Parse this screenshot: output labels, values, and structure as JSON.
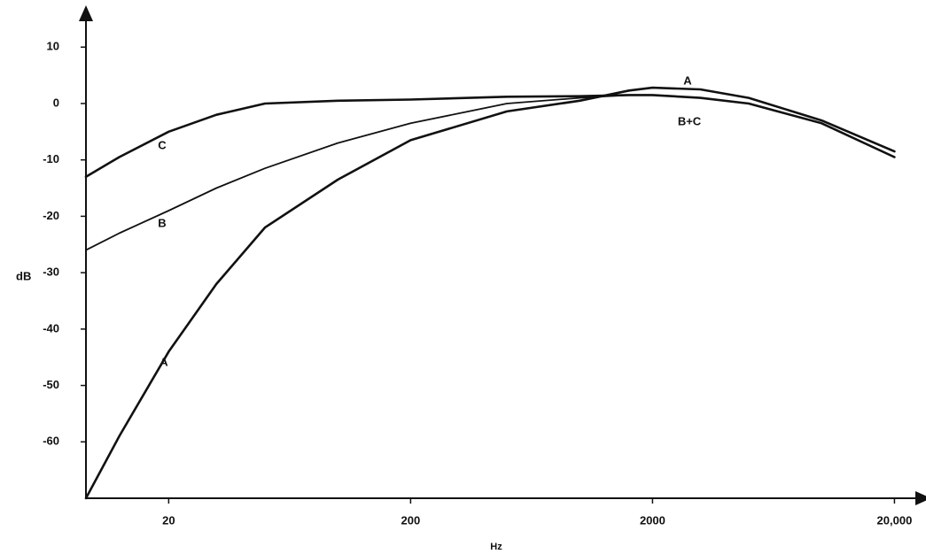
{
  "chart_data": {
    "type": "line",
    "x_label": "Hz",
    "y_label": "dB",
    "log_x": true,
    "x": [
      9.1,
      12.5,
      20,
      31.5,
      50,
      100,
      200,
      500,
      1000,
      1600,
      2000,
      3150,
      5000,
      10000,
      20000
    ],
    "series": [
      {
        "name": "A",
        "color": "#111111",
        "values": [
          -70,
          -59,
          -44,
          -32,
          -22,
          -13.5,
          -6.5,
          -1.4,
          0.5,
          2.3,
          2.8,
          2.5,
          1,
          -3,
          -8.5
        ]
      },
      {
        "name": "B",
        "color": "#111111",
        "values": [
          -26,
          -23,
          -19,
          -15,
          -11.5,
          -7,
          -3.5,
          0,
          1,
          1.5,
          1.5,
          1,
          0,
          -3.5,
          -9.5
        ]
      },
      {
        "name": "C",
        "color": "#111111",
        "values": [
          -13,
          -9.5,
          -5,
          -2,
          0,
          0.5,
          0.7,
          1.2,
          1.3,
          1.5,
          1.5,
          1,
          0,
          -3.5,
          -9.5
        ]
      }
    ],
    "annotations": [
      "A",
      "B+C"
    ],
    "xlim": [
      9.1,
      27000
    ],
    "ylim": [
      -70,
      16
    ],
    "xticks": [
      20,
      200,
      2000,
      {
        "value": 20000,
        "label": "20,000"
      }
    ],
    "yticks": [
      10,
      0,
      -10,
      -20,
      -30,
      -40,
      -50,
      -60
    ]
  }
}
